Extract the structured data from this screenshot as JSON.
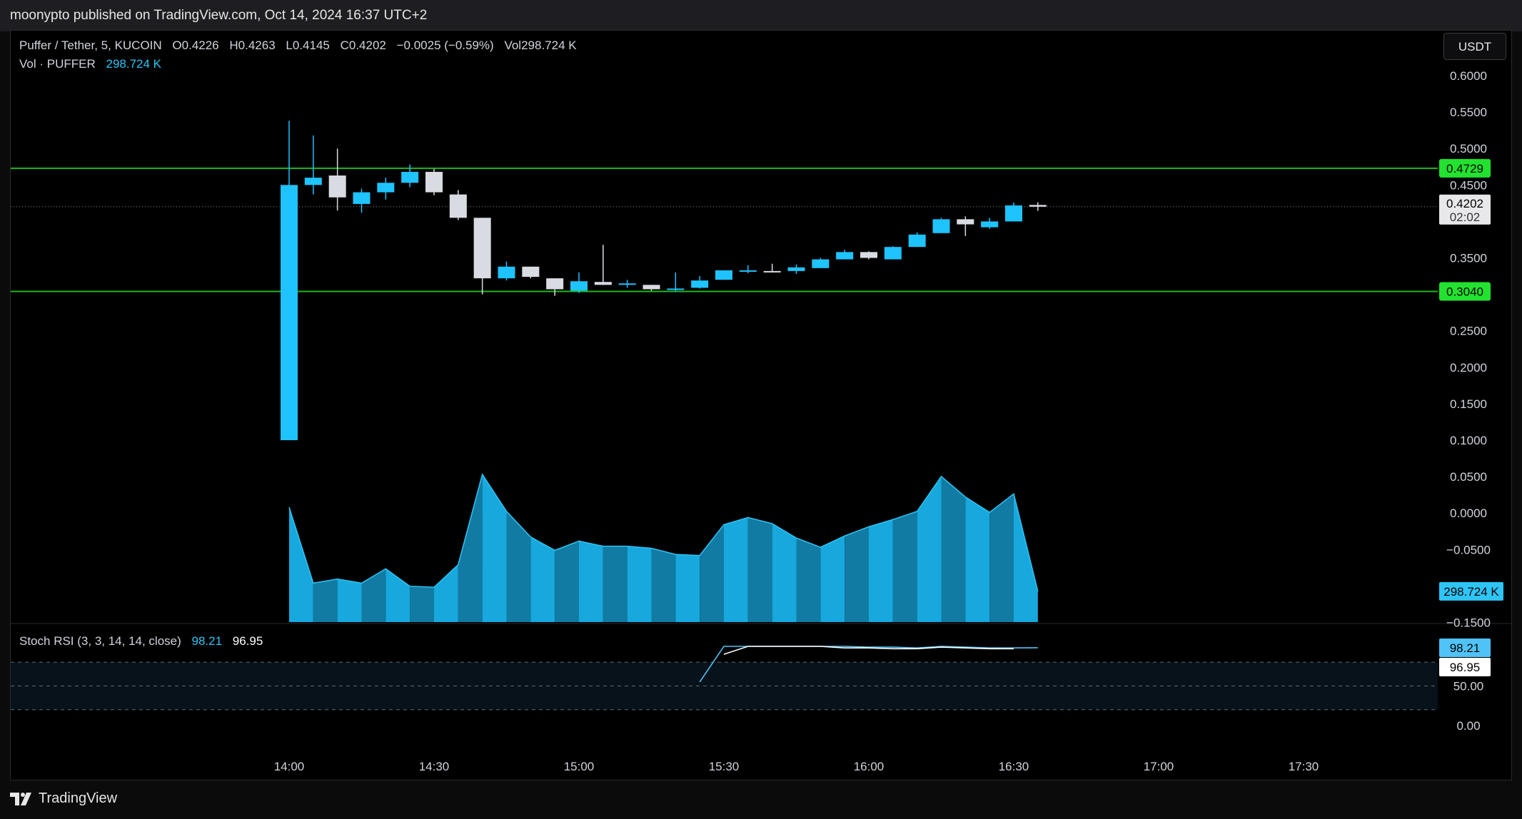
{
  "header": {
    "published_text": "moonypto published on TradingView.com, Oct 14, 2024 16:37 UTC+2"
  },
  "legend": {
    "symbol": "Puffer / Tether, 5, KUCOIN",
    "open": "O0.4226",
    "high": "H0.4263",
    "low": "L0.4145",
    "close": "C0.4202",
    "change": "−0.0025 (−0.59%)",
    "vol": "Vol298.724 K",
    "vol_label": "Vol · PUFFER",
    "vol_value": "298.724 K"
  },
  "currency_button": "USDT",
  "brand": {
    "name": "TradingView"
  },
  "colors": {
    "up": "#1ec3ff",
    "down": "#d9dbe2",
    "level_line": "#1fb81f",
    "level_label_bg": "#22e22f",
    "volume_area_light": "#17a8dd",
    "volume_area_dark": "#127ba3",
    "stoch_k": "#4fc3f7",
    "stoch_d": "#ffffff"
  },
  "chart_data": [
    {
      "type": "candlestick",
      "interval_minutes": 5,
      "x_ticks": [
        "14:00",
        "14:30",
        "15:00",
        "15:30",
        "16:00",
        "16:30",
        "17:00",
        "17:30"
      ],
      "y_ticks": [
        "0.6000",
        "0.5500",
        "0.5000",
        "0.4500",
        "0.3500",
        "0.2500",
        "0.2000",
        "0.1500",
        "0.1000",
        "0.0500",
        "0.0000",
        "−0.0500",
        "−0.1000",
        "−0.1500"
      ],
      "ylim": [
        -0.15,
        0.62
      ],
      "horizontal_levels": [
        {
          "value": 0.4729,
          "label": "0.4729"
        },
        {
          "value": 0.304,
          "label": "0.3040"
        }
      ],
      "last_price": {
        "value": 0.4202,
        "label": "0.4202",
        "countdown": "02:02"
      },
      "candles": [
        {
          "time": "14:00",
          "o": 0.1,
          "h": 0.538,
          "l": 0.1,
          "c": 0.45
        },
        {
          "time": "14:05",
          "o": 0.45,
          "h": 0.518,
          "l": 0.437,
          "c": 0.46
        },
        {
          "time": "14:10",
          "o": 0.463,
          "h": 0.5,
          "l": 0.415,
          "c": 0.433
        },
        {
          "time": "14:15",
          "o": 0.424,
          "h": 0.445,
          "l": 0.412,
          "c": 0.44
        },
        {
          "time": "14:20",
          "o": 0.44,
          "h": 0.46,
          "l": 0.43,
          "c": 0.453
        },
        {
          "time": "14:25",
          "o": 0.453,
          "h": 0.478,
          "l": 0.447,
          "c": 0.468
        },
        {
          "time": "14:30",
          "o": 0.468,
          "h": 0.472,
          "l": 0.436,
          "c": 0.44
        },
        {
          "time": "14:35",
          "o": 0.437,
          "h": 0.443,
          "l": 0.402,
          "c": 0.405
        },
        {
          "time": "14:40",
          "o": 0.405,
          "h": 0.405,
          "l": 0.3,
          "c": 0.322
        },
        {
          "time": "14:45",
          "o": 0.322,
          "h": 0.345,
          "l": 0.319,
          "c": 0.338
        },
        {
          "time": "14:50",
          "o": 0.338,
          "h": 0.338,
          "l": 0.322,
          "c": 0.324
        },
        {
          "time": "14:55",
          "o": 0.322,
          "h": 0.322,
          "l": 0.298,
          "c": 0.307
        },
        {
          "time": "15:00",
          "o": 0.305,
          "h": 0.33,
          "l": 0.302,
          "c": 0.318
        },
        {
          "time": "15:05",
          "o": 0.317,
          "h": 0.368,
          "l": 0.313,
          "c": 0.313
        },
        {
          "time": "15:10",
          "o": 0.314,
          "h": 0.32,
          "l": 0.309,
          "c": 0.315
        },
        {
          "time": "15:15",
          "o": 0.313,
          "h": 0.313,
          "l": 0.305,
          "c": 0.307
        },
        {
          "time": "15:20",
          "o": 0.306,
          "h": 0.33,
          "l": 0.304,
          "c": 0.308
        },
        {
          "time": "15:25",
          "o": 0.309,
          "h": 0.325,
          "l": 0.308,
          "c": 0.319
        },
        {
          "time": "15:30",
          "o": 0.32,
          "h": 0.331,
          "l": 0.32,
          "c": 0.333
        },
        {
          "time": "15:35",
          "o": 0.331,
          "h": 0.34,
          "l": 0.329,
          "c": 0.333
        },
        {
          "time": "15:40",
          "o": 0.332,
          "h": 0.342,
          "l": 0.33,
          "c": 0.331
        },
        {
          "time": "15:45",
          "o": 0.332,
          "h": 0.341,
          "l": 0.328,
          "c": 0.337
        },
        {
          "time": "15:50",
          "o": 0.336,
          "h": 0.35,
          "l": 0.336,
          "c": 0.348
        },
        {
          "time": "15:55",
          "o": 0.348,
          "h": 0.361,
          "l": 0.348,
          "c": 0.358
        },
        {
          "time": "16:00",
          "o": 0.358,
          "h": 0.359,
          "l": 0.348,
          "c": 0.35
        },
        {
          "time": "16:05",
          "o": 0.348,
          "h": 0.366,
          "l": 0.348,
          "c": 0.365
        },
        {
          "time": "16:10",
          "o": 0.365,
          "h": 0.385,
          "l": 0.365,
          "c": 0.382
        },
        {
          "time": "16:15",
          "o": 0.384,
          "h": 0.405,
          "l": 0.384,
          "c": 0.403
        },
        {
          "time": "16:20",
          "o": 0.403,
          "h": 0.407,
          "l": 0.38,
          "c": 0.396
        },
        {
          "time": "16:25",
          "o": 0.392,
          "h": 0.405,
          "l": 0.39,
          "c": 0.4
        },
        {
          "time": "16:30",
          "o": 0.4,
          "h": 0.426,
          "l": 0.4,
          "c": 0.422
        },
        {
          "time": "16:35",
          "o": 0.4226,
          "h": 0.4263,
          "l": 0.4145,
          "c": 0.4202
        }
      ],
      "volume_units": "K",
      "volume": [
        1120,
        380,
        420,
        380,
        520,
        350,
        340,
        560,
        1440,
        1080,
        830,
        700,
        790,
        740,
        740,
        720,
        660,
        650,
        950,
        1020,
        960,
        820,
        730,
        840,
        930,
        1000,
        1080,
        1420,
        1220,
        1070,
        1250,
        300
      ]
    },
    {
      "type": "line",
      "title": "Stoch RSI (3, 3, 14, 14, close)",
      "k_value": "98.21",
      "d_value": "96.95",
      "y_ticks": [
        "50.00",
        "0.00"
      ],
      "bands": [
        80,
        50,
        20
      ],
      "ylim": [
        0,
        100
      ],
      "series": [
        {
          "name": "K",
          "start_time": "15:25",
          "values": [
            55,
            100,
            100,
            100,
            100,
            100,
            100,
            99,
            99,
            98,
            100,
            99,
            98,
            98,
            98.21
          ]
        },
        {
          "name": "D",
          "start_time": "15:30",
          "values": [
            90,
            100,
            100,
            100,
            100,
            98,
            98,
            97,
            97,
            99,
            98,
            97,
            96.95
          ]
        }
      ]
    }
  ]
}
